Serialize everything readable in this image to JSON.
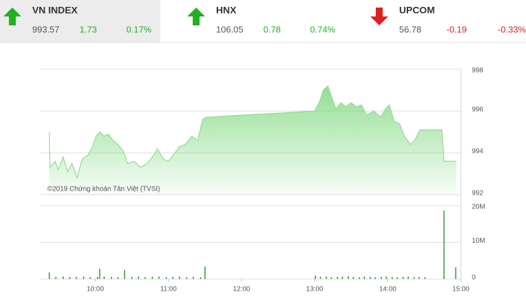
{
  "header": {
    "indices": [
      {
        "name": "VN INDEX",
        "value": "993.57",
        "change": "1.73",
        "percent": "0.17%",
        "direction": "up"
      },
      {
        "name": "HNX",
        "value": "106.05",
        "change": "0.78",
        "percent": "0.74%",
        "direction": "up"
      },
      {
        "name": "UPCOM",
        "value": "56.78",
        "change": "-0.19",
        "percent": "-0.33%",
        "direction": "down"
      }
    ]
  },
  "chart_data": [
    {
      "type": "area",
      "watermark": "©2019 Chứng khoán Tân Việt (TVSI)",
      "color": "#8fdc8f",
      "x": [
        9.37,
        9.38,
        9.45,
        9.49,
        9.56,
        9.62,
        9.68,
        9.75,
        9.82,
        9.9,
        9.96,
        10.01,
        10.06,
        10.12,
        10.18,
        10.24,
        10.31,
        10.38,
        10.44,
        10.53,
        10.62,
        10.71,
        10.78,
        10.85,
        10.93,
        11.0,
        11.09,
        11.15,
        11.23,
        11.32,
        11.4,
        11.47,
        11.51,
        13.0,
        13.06,
        13.12,
        13.18,
        13.23,
        13.29,
        13.36,
        13.43,
        13.5,
        13.57,
        13.64,
        13.71,
        13.81,
        13.9,
        13.97,
        14.02,
        14.09,
        14.16,
        14.23,
        14.31,
        14.37,
        14.44,
        14.51,
        14.74,
        14.77,
        14.94
      ],
      "values": [
        995.0,
        993.3,
        993.6,
        993.2,
        993.8,
        993.1,
        993.5,
        992.8,
        993.7,
        993.9,
        994.3,
        994.8,
        995.0,
        994.8,
        994.9,
        994.6,
        994.4,
        994.1,
        993.5,
        993.6,
        993.3,
        993.5,
        993.8,
        994.2,
        993.7,
        993.6,
        994.0,
        994.3,
        994.4,
        994.8,
        994.6,
        995.6,
        995.7,
        996.0,
        996.4,
        997.0,
        997.2,
        996.7,
        996.1,
        996.4,
        996.2,
        996.4,
        996.2,
        996.3,
        995.8,
        996.0,
        995.7,
        996.1,
        996.3,
        995.5,
        995.4,
        994.8,
        994.4,
        994.6,
        995.1,
        995.1,
        995.1,
        993.6,
        993.6
      ],
      "xlim": [
        9.24,
        15
      ],
      "ylim": [
        992,
        998
      ],
      "yticks": [
        992,
        994,
        996,
        998
      ],
      "grid": true
    },
    {
      "type": "bar",
      "color": "#3a9a3a",
      "x": [
        9.37,
        9.46,
        9.56,
        9.65,
        9.74,
        9.84,
        9.93,
        10.03,
        10.06,
        10.12,
        10.22,
        10.31,
        10.4,
        10.5,
        10.59,
        10.68,
        10.78,
        10.87,
        10.97,
        11.06,
        11.15,
        11.25,
        11.34,
        11.44,
        11.5,
        13.01,
        13.08,
        13.16,
        13.23,
        13.31,
        13.38,
        13.46,
        13.53,
        13.61,
        13.68,
        13.76,
        13.83,
        13.91,
        13.98,
        14.06,
        14.13,
        14.21,
        14.28,
        14.36,
        14.43,
        14.51,
        14.77,
        14.93
      ],
      "values": [
        1800000,
        600000,
        700000,
        500000,
        600000,
        700000,
        500000,
        600000,
        2800000,
        700000,
        600000,
        500000,
        2500000,
        600000,
        700000,
        500000,
        600000,
        700000,
        500000,
        600000,
        700000,
        500000,
        600000,
        500000,
        3400000,
        900000,
        600000,
        700000,
        500000,
        600000,
        700000,
        800000,
        600000,
        500000,
        700000,
        600000,
        500000,
        600000,
        700000,
        600000,
        500000,
        600000,
        700000,
        500000,
        600000,
        500000,
        18700000,
        3200000
      ],
      "xlim": [
        9.24,
        15
      ],
      "ylim": [
        0,
        20000000
      ],
      "yticks": [
        0,
        {
          "value": 10000000,
          "label": "10M"
        },
        {
          "value": 20000000,
          "label": "20M"
        }
      ],
      "xticks": [
        {
          "value": 10,
          "label": "10:00"
        },
        {
          "value": 11,
          "label": "11:00"
        },
        {
          "value": 12,
          "label": "12:00"
        },
        {
          "value": 13,
          "label": "13:00"
        },
        {
          "value": 14,
          "label": "14:00"
        },
        {
          "value": 15,
          "label": "15:00"
        }
      ],
      "grid": true
    }
  ]
}
